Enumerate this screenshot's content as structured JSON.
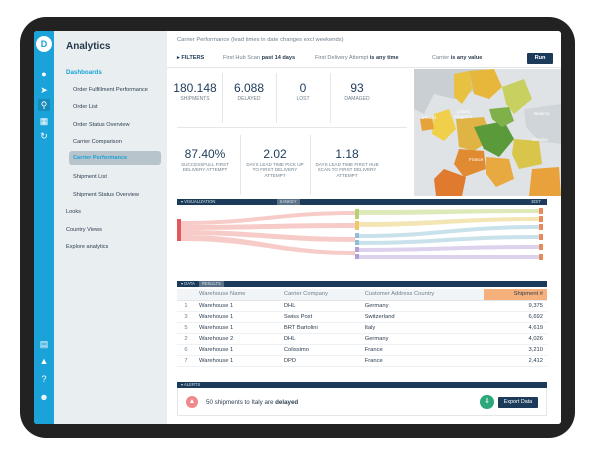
{
  "app": {
    "title": "Analytics",
    "logo_glyph": "D"
  },
  "rail_icons": [
    "pin-icon",
    "send-icon",
    "search-icon",
    "chart-icon",
    "refresh-icon",
    "doc-icon",
    "bell-icon",
    "help-icon",
    "user-icon"
  ],
  "sidebar": {
    "dashboards": "Dashboards",
    "items": [
      "Order Fulfillment Performance",
      "Order List",
      "Order Status Overview",
      "Carrier Comparison",
      "Carrier Performance",
      "Shipment List",
      "Shipment Status Overview"
    ],
    "looks": "Looks",
    "country_views": "Country Views",
    "explore": "Explore analytics"
  },
  "breadcrumb": "Carrier Performance (lead times in date changes excl weekends)",
  "filters": {
    "label": "FILTERS",
    "f1_name": "First Hub Scan",
    "f1_value": "past 14 days",
    "f2_name": "First Delivery Attempt",
    "f2_value": "is any time",
    "f3_name": "Carrier",
    "f3_value": "is any value",
    "run": "Run"
  },
  "kpis": [
    {
      "value": "180.148",
      "label": "SHIPMENTS"
    },
    {
      "value": "6.088",
      "label": "DELAYED"
    },
    {
      "value": "0",
      "label": "LOST"
    },
    {
      "value": "93",
      "label": "DAMAGED"
    }
  ],
  "kpis2": [
    {
      "value": "87.40%",
      "label": "SUCCESSFULL FIRST DELIVERY ATTEMPT"
    },
    {
      "value": "2.02",
      "label": "DAYS LEAD TIME PICK UP TO FIRST DELIVERY ATTEMPT"
    },
    {
      "value": "1.18",
      "label": "DAYS LEAD TIME FIRST HUB SCAN TO FIRST DELIVERY ATTEMPT"
    }
  ],
  "map_labels": {
    "uk": "United Kingdom",
    "ireland": "Ireland",
    "belarus": "Belarus",
    "ukraine": "Ukraine",
    "france": "France"
  },
  "viz_bar": {
    "label": "VISUALIZATION",
    "tab": "SANKEY",
    "edit": "EDIT"
  },
  "data_bar": {
    "label": "DATA",
    "tab": "RESULTS"
  },
  "table": {
    "headers": [
      "Warehouse Name",
      "Carrier Company",
      "Customer Address Country",
      "Shipment #"
    ],
    "rows": [
      [
        "1",
        "Warehouse 1",
        "DHL",
        "Germany",
        "9,375"
      ],
      [
        "3",
        "Warehouse 1",
        "Swiss Post",
        "Switzerland",
        "6,692"
      ],
      [
        "5",
        "Warehouse 1",
        "BRT Bartolini",
        "Italy",
        "4,619"
      ],
      [
        "2",
        "Warehouse 2",
        "DHL",
        "Germany",
        "4,026"
      ],
      [
        "6",
        "Warehouse 1",
        "Colissimo",
        "France",
        "3,210"
      ],
      [
        "7",
        "Warehouse 1",
        "DPD",
        "France",
        "2,412"
      ]
    ]
  },
  "alerts": {
    "label": "ALERTS",
    "message_pre": "50 shipments to Italy are",
    "message_bold": "delayed",
    "export": "Export Data"
  }
}
